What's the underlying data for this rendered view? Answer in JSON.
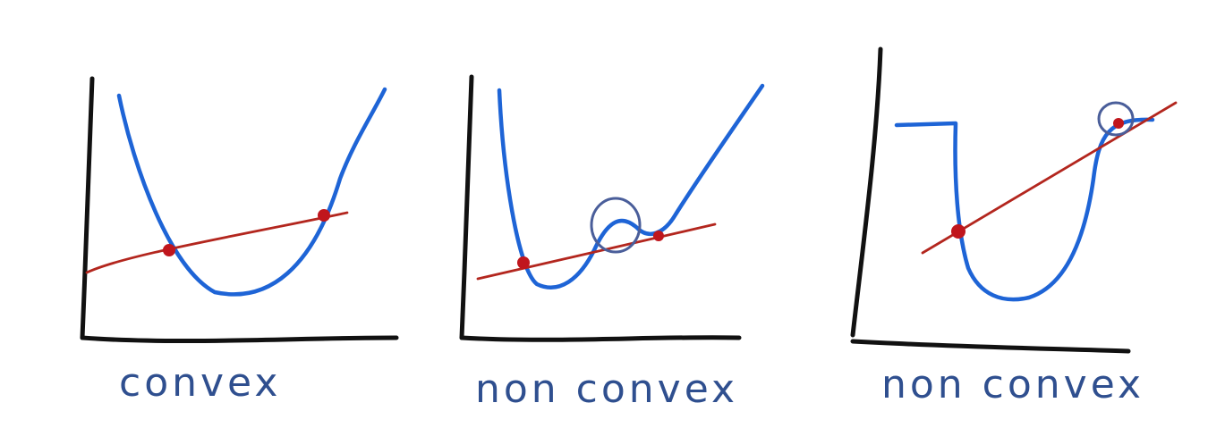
{
  "colors": {
    "axis": "#111111",
    "curve": "#1e64d6",
    "secant": "#b3261e",
    "point": "#c0161d",
    "highlight": "#4a5e9a",
    "caption": "#2f4f8f"
  },
  "panels": [
    {
      "label": "convex",
      "function_shape": "convex",
      "secant_points": 2,
      "highlight_circles": 0
    },
    {
      "label": "non convex",
      "function_shape": "non-convex",
      "secant_points": 2,
      "highlight_circles": 1
    },
    {
      "label": "non convex",
      "function_shape": "non-convex",
      "secant_points": 2,
      "highlight_circles": 1
    }
  ]
}
